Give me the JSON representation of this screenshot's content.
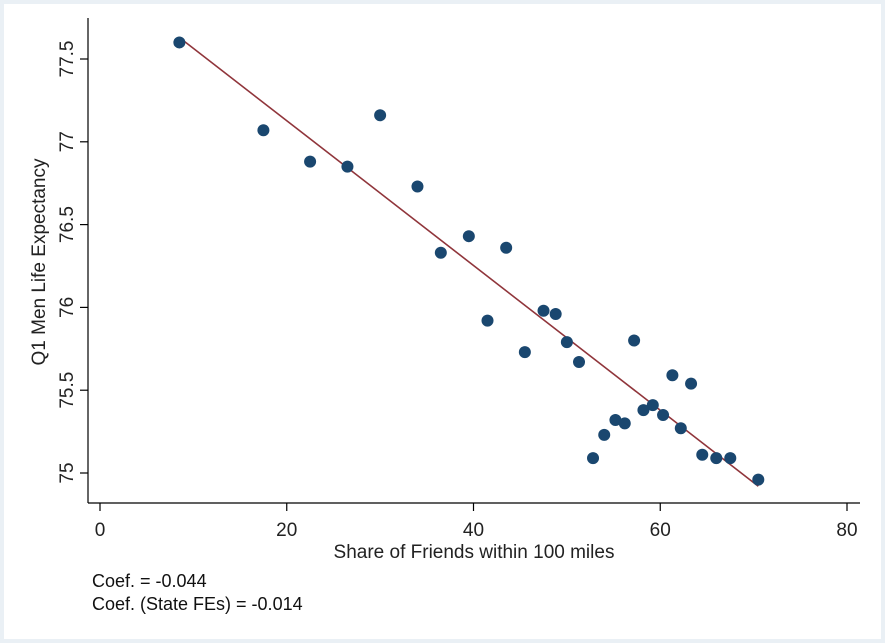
{
  "chart_data": {
    "type": "scatter",
    "title": "",
    "xlabel": "Share of Friends within 100 miles",
    "ylabel": "Q1 Men Life Expectancy",
    "xlim": [
      0,
      80
    ],
    "ylim": [
      75,
      77.5
    ],
    "x_ticks": [
      "0",
      "20",
      "40",
      "60",
      "80"
    ],
    "y_ticks": [
      "75",
      "75.5",
      "76",
      "76.5",
      "77",
      "77.5"
    ],
    "grid": false,
    "legend": "none",
    "marker_color": "#1a476f",
    "fit_color": "#90353b",
    "points": [
      {
        "x": 8.5,
        "y": 77.6
      },
      {
        "x": 17.5,
        "y": 77.07
      },
      {
        "x": 22.5,
        "y": 76.88
      },
      {
        "x": 26.5,
        "y": 76.85
      },
      {
        "x": 30.0,
        "y": 77.16
      },
      {
        "x": 34.0,
        "y": 76.73
      },
      {
        "x": 36.5,
        "y": 76.33
      },
      {
        "x": 39.5,
        "y": 76.43
      },
      {
        "x": 43.5,
        "y": 76.36
      },
      {
        "x": 41.5,
        "y": 75.92
      },
      {
        "x": 45.5,
        "y": 75.73
      },
      {
        "x": 47.5,
        "y": 75.98
      },
      {
        "x": 48.8,
        "y": 75.96
      },
      {
        "x": 50.0,
        "y": 75.79
      },
      {
        "x": 51.3,
        "y": 75.67
      },
      {
        "x": 52.8,
        "y": 75.09
      },
      {
        "x": 54.0,
        "y": 75.23
      },
      {
        "x": 55.2,
        "y": 75.32
      },
      {
        "x": 56.2,
        "y": 75.3
      },
      {
        "x": 57.2,
        "y": 75.8
      },
      {
        "x": 58.2,
        "y": 75.38
      },
      {
        "x": 59.2,
        "y": 75.41
      },
      {
        "x": 60.3,
        "y": 75.35
      },
      {
        "x": 61.3,
        "y": 75.59
      },
      {
        "x": 62.2,
        "y": 75.27
      },
      {
        "x": 63.3,
        "y": 75.54
      },
      {
        "x": 64.5,
        "y": 75.11
      },
      {
        "x": 66.0,
        "y": 75.09
      },
      {
        "x": 67.5,
        "y": 75.09
      },
      {
        "x": 70.5,
        "y": 74.96
      }
    ],
    "fit_line": {
      "x": [
        8.5,
        70.5
      ],
      "y": [
        77.63,
        74.92
      ]
    }
  },
  "notes": {
    "coef": "Coef. = -0.044",
    "coef_state_fe": "Coef. (State FEs) = -0.014"
  }
}
